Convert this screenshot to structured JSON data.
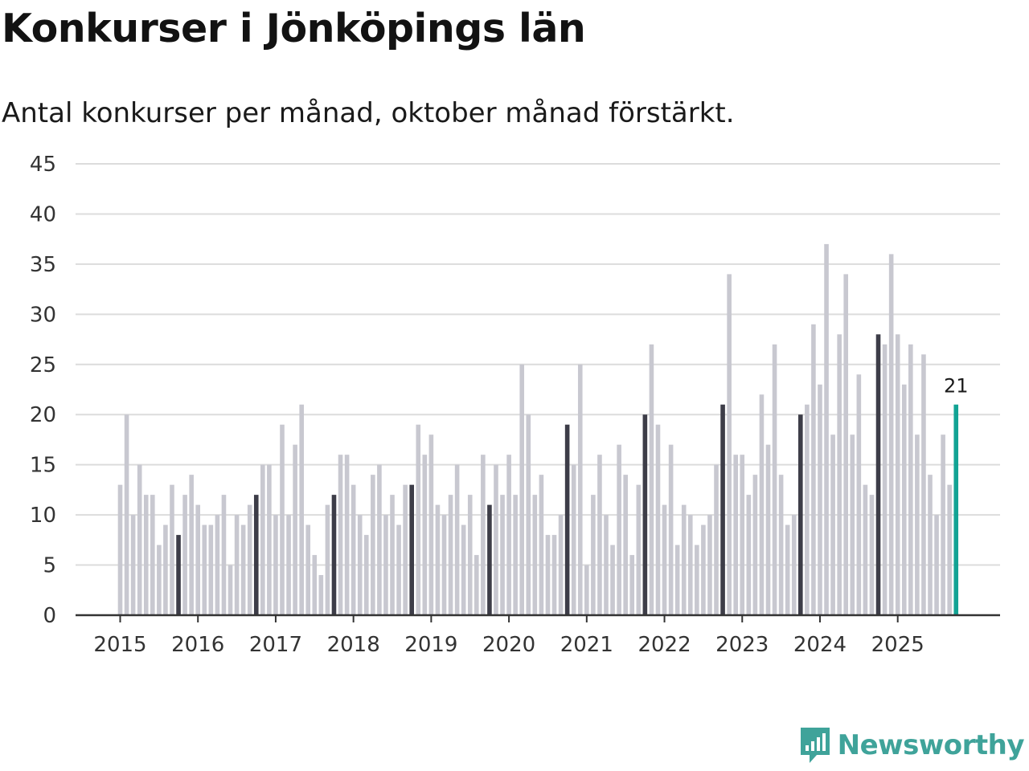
{
  "title": "Konkurser i Jönköpings län",
  "subtitle": "Antal konkurser per månad, oktober månad förstärkt.",
  "brand": {
    "name": "Newsworthy",
    "icon": "newsworthy-logo-icon"
  },
  "colors": {
    "base": "#c8c8d0",
    "highlight": "#3d3d48",
    "latest": "#12a394",
    "grid": "#dcdcdc",
    "axis": "#333333"
  },
  "chart_data": {
    "type": "bar",
    "title": "Konkurser i Jönköpings län",
    "subtitle": "Antal konkurser per månad, oktober månad förstärkt.",
    "xlabel": "",
    "ylabel": "",
    "ylim": [
      0,
      45
    ],
    "yticks": [
      0,
      5,
      10,
      15,
      20,
      25,
      30,
      35,
      40,
      45
    ],
    "xticks": [
      "2015",
      "2016",
      "2017",
      "2018",
      "2019",
      "2020",
      "2021",
      "2022",
      "2023",
      "2024",
      "2025"
    ],
    "start": "2015-01",
    "highlight_month": "oktober",
    "grid": true,
    "annotation": {
      "index": 129,
      "label": "21"
    },
    "values": [
      13,
      20,
      10,
      15,
      12,
      12,
      7,
      9,
      13,
      8,
      12,
      14,
      11,
      9,
      9,
      10,
      12,
      5,
      10,
      9,
      11,
      12,
      15,
      15,
      10,
      19,
      10,
      17,
      21,
      9,
      6,
      4,
      11,
      12,
      16,
      16,
      13,
      10,
      8,
      14,
      15,
      10,
      12,
      9,
      13,
      13,
      19,
      16,
      18,
      11,
      10,
      12,
      15,
      9,
      12,
      6,
      16,
      11,
      15,
      12,
      16,
      12,
      25,
      20,
      12,
      14,
      8,
      8,
      10,
      19,
      15,
      25,
      5,
      12,
      16,
      10,
      7,
      17,
      14,
      6,
      13,
      20,
      27,
      19,
      11,
      17,
      7,
      11,
      10,
      7,
      9,
      10,
      15,
      21,
      34,
      16,
      16,
      12,
      14,
      22,
      17,
      27,
      14,
      9,
      10,
      20,
      21,
      29,
      23,
      37,
      18,
      28,
      34,
      18,
      24,
      13,
      12,
      28,
      27,
      36,
      28,
      23,
      27,
      18,
      26,
      14,
      10,
      18,
      13,
      21
    ]
  }
}
